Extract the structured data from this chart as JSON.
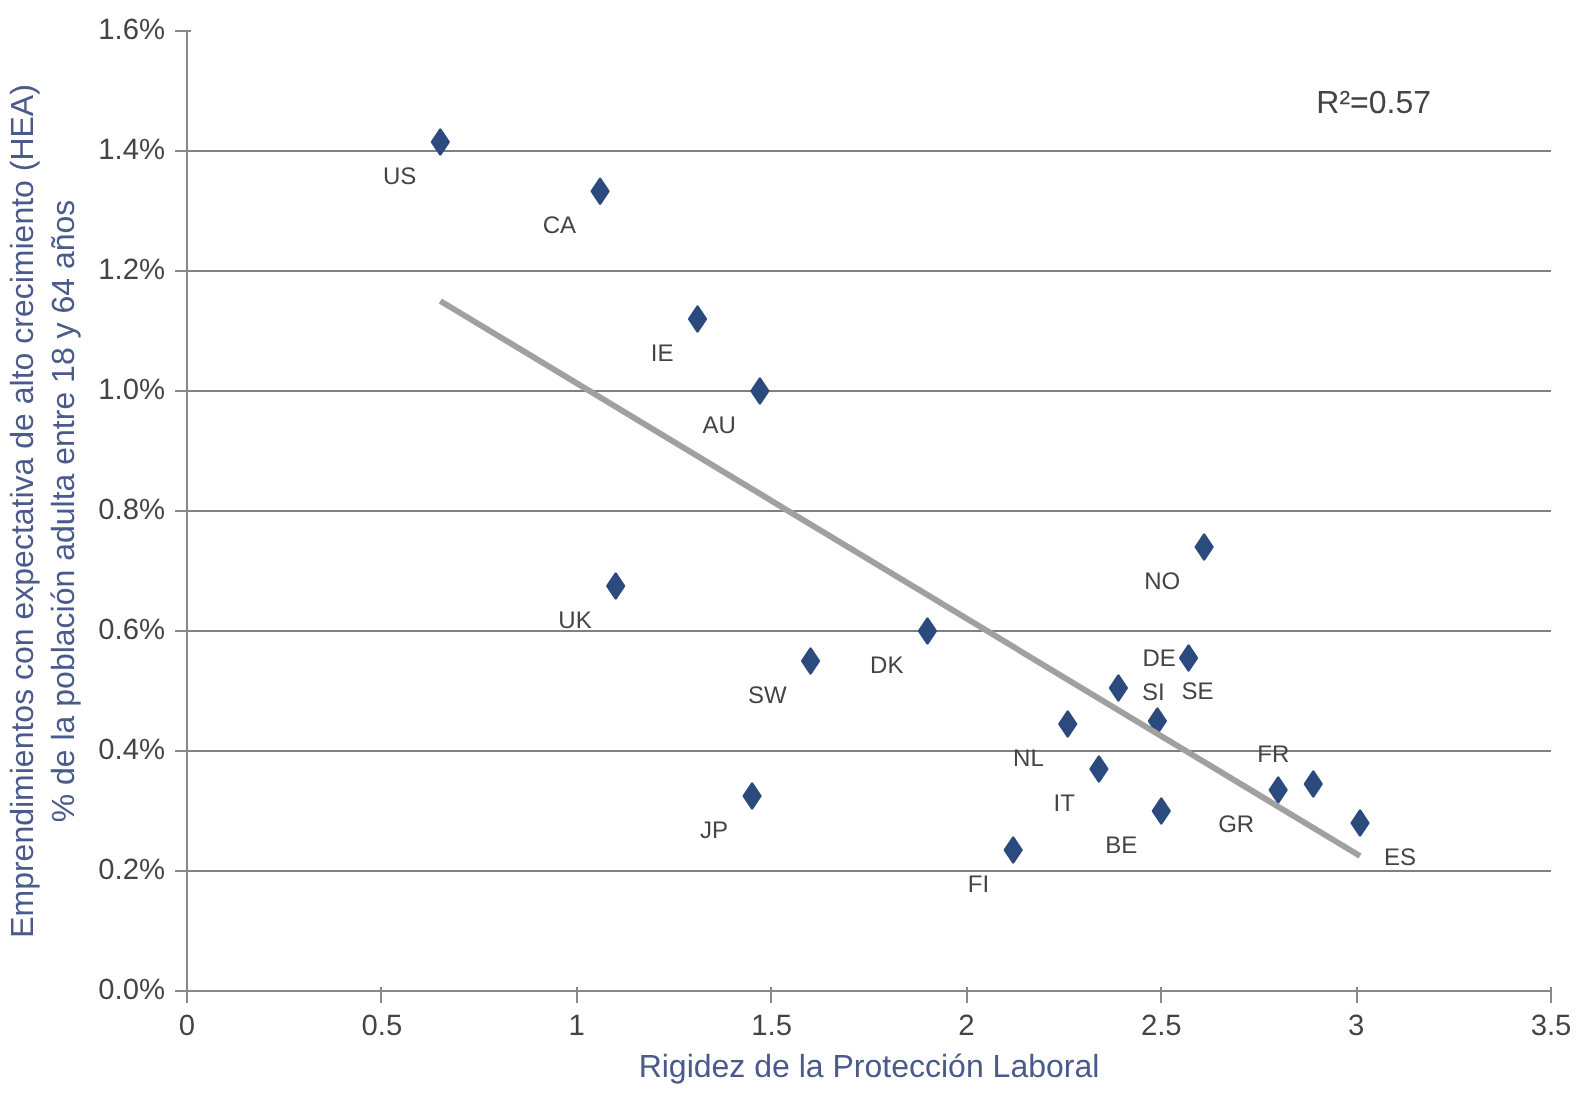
{
  "chart_data": {
    "type": "scatter",
    "xlabel": "Rigidez de la Protección Laboral",
    "ylabel": "Emprendimientos con expectativa de alto crecimiento (HEA)\n% de la población adulta entre 18 y 64 años",
    "xlim": [
      0,
      3.5
    ],
    "xticks": [
      0,
      0.5,
      1,
      1.5,
      2,
      2.5,
      3,
      3.5
    ],
    "ylim": [
      0,
      1.6
    ],
    "yticks": [
      {
        "value": 0,
        "label": "0.0%"
      },
      {
        "value": 0.2,
        "label": "0.2%"
      },
      {
        "value": 0.4,
        "label": "0.4%"
      },
      {
        "value": 0.6,
        "label": "0.6%"
      },
      {
        "value": 0.8,
        "label": "0.8%"
      },
      {
        "value": 1.0,
        "label": "1.0%"
      },
      {
        "value": 1.2,
        "label": "1.2%"
      },
      {
        "value": 1.4,
        "label": "1.4%"
      },
      {
        "value": 1.6,
        "label": "1.6%"
      }
    ],
    "grid": "y",
    "marker": "diamond",
    "series": [
      {
        "color": "#2b4a7e",
        "x": [
          0.65,
          1.06,
          1.31,
          1.47,
          1.1,
          1.6,
          1.45,
          1.9,
          2.61,
          2.39,
          2.57,
          2.49,
          2.26,
          2.34,
          2.5,
          2.12,
          2.8,
          2.89,
          3.01
        ],
        "values": [
          1.415,
          1.333,
          1.12,
          1.0,
          0.675,
          0.55,
          0.325,
          0.6,
          0.74,
          0.505,
          0.555,
          0.45,
          0.445,
          0.37,
          0.3,
          0.235,
          0.335,
          0.345,
          0.28
        ]
      },
      {
        "type": "line",
        "marker": "none",
        "color": "#a0a0a0",
        "x": [
          0.65,
          3.01
        ],
        "values": [
          1.15,
          0.225
        ]
      }
    ],
    "annotations": [
      {
        "text": "US",
        "x": 0.65,
        "y": 1.415
      },
      {
        "text": "CA",
        "x": 1.06,
        "y": 1.333
      },
      {
        "text": "IE",
        "x": 1.31,
        "y": 1.12
      },
      {
        "text": "AU",
        "x": 1.47,
        "y": 1.0
      },
      {
        "text": "UK",
        "x": 1.1,
        "y": 0.675
      },
      {
        "text": "SW",
        "x": 1.6,
        "y": 0.55
      },
      {
        "text": "JP",
        "x": 1.45,
        "y": 0.325
      },
      {
        "text": "DK",
        "x": 1.9,
        "y": 0.6
      },
      {
        "text": "NO",
        "x": 2.61,
        "y": 0.74
      },
      {
        "text": "DE",
        "x": 2.39,
        "y": 0.505
      },
      {
        "text": "SI",
        "x": 2.57,
        "y": 0.555
      },
      {
        "text": "SE",
        "x": 2.49,
        "y": 0.45
      },
      {
        "text": "NL",
        "x": 2.26,
        "y": 0.445
      },
      {
        "text": "IT",
        "x": 2.34,
        "y": 0.37
      },
      {
        "text": "BE",
        "x": 2.5,
        "y": 0.3
      },
      {
        "text": "FI",
        "x": 2.12,
        "y": 0.235
      },
      {
        "text": "GR",
        "x": 2.8,
        "y": 0.335
      },
      {
        "text": "FR",
        "x": 2.89,
        "y": 0.345
      },
      {
        "text": "ES",
        "x": 3.01,
        "y": 0.28
      },
      "R²=0.57"
    ]
  }
}
